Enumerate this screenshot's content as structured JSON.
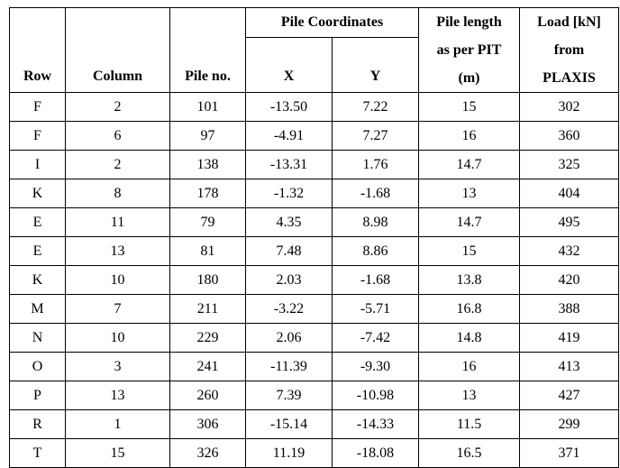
{
  "header": {
    "row": "Row",
    "column": "Column",
    "pile_no": "Pile no.",
    "pile_coordinates": "Pile Coordinates",
    "x": "X",
    "y": "Y",
    "pile_length": [
      "Pile length",
      "as per PIT",
      "(m)"
    ],
    "load": [
      "Load [kN]",
      "from",
      "PLAXIS"
    ]
  },
  "table": {
    "rows": [
      [
        "F",
        "2",
        "101",
        "-13.50",
        "7.22",
        "15",
        "302"
      ],
      [
        "F",
        "6",
        "97",
        "-4.91",
        "7.27",
        "16",
        "360"
      ],
      [
        "I",
        "2",
        "138",
        "-13.31",
        "1.76",
        "14.7",
        "325"
      ],
      [
        "K",
        "8",
        "178",
        "-1.32",
        "-1.68",
        "13",
        "404"
      ],
      [
        "E",
        "11",
        "79",
        "4.35",
        "8.98",
        "14.7",
        "495"
      ],
      [
        "E",
        "13",
        "81",
        "7.48",
        "8.86",
        "15",
        "432"
      ],
      [
        "K",
        "10",
        "180",
        "2.03",
        "-1.68",
        "13.8",
        "420"
      ],
      [
        "M",
        "7",
        "211",
        "-3.22",
        "-5.71",
        "16.8",
        "388"
      ],
      [
        "N",
        "10",
        "229",
        "2.06",
        "-7.42",
        "14.8",
        "419"
      ],
      [
        "O",
        "3",
        "241",
        "-11.39",
        "-9.30",
        "16",
        "413"
      ],
      [
        "P",
        "13",
        "260",
        "7.39",
        "-10.98",
        "13",
        "427"
      ],
      [
        "R",
        "1",
        "306",
        "-15.14",
        "-14.33",
        "11.5",
        "299"
      ],
      [
        "T",
        "15",
        "326",
        "11.19",
        "-18.08",
        "16.5",
        "371"
      ]
    ]
  }
}
